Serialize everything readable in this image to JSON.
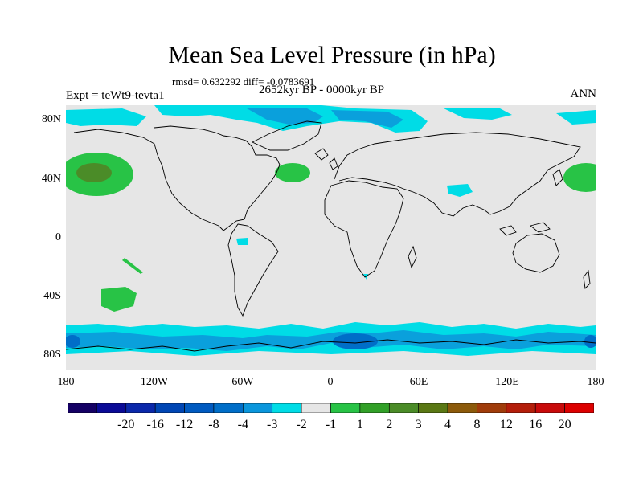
{
  "header": {
    "title": "Mean Sea Level Pressure (in hPa)",
    "stats": "rmsd= 0.632292 diff= -0.0783691",
    "period": "2652kyr BP - 0000kyr BP",
    "experiment": "Expt = teWt9-tevta1",
    "season": "ANN"
  },
  "axes": {
    "lat_labels": [
      "80N",
      "40N",
      "0",
      "40S",
      "80S"
    ],
    "lon_labels": [
      "180",
      "120W",
      "60W",
      "0",
      "60E",
      "120E",
      "180"
    ]
  },
  "colors": {
    "background": "#e6e6e6",
    "cyan": "#00dce6",
    "light_blue": "#0aa0dc",
    "mid_blue": "#006ec8",
    "green": "#28c346",
    "dark_green": "#4b8c28"
  },
  "colorbar": {
    "colors": [
      "#140064",
      "#0a0a96",
      "#0a28aa",
      "#0046b4",
      "#005ac0",
      "#006ec8",
      "#0a96dc",
      "#00dce6",
      "#e6e6e6",
      "#28c346",
      "#32a028",
      "#4b8c28",
      "#5a7814",
      "#8c5a0a",
      "#a03c0a",
      "#b41e0a",
      "#c80a0a",
      "#dc0000"
    ],
    "labels": [
      "-20",
      "-16",
      "-12",
      "-8",
      "-4",
      "-3",
      "-2",
      "-1",
      "1",
      "2",
      "3",
      "4",
      "8",
      "12",
      "16",
      "20"
    ]
  }
}
